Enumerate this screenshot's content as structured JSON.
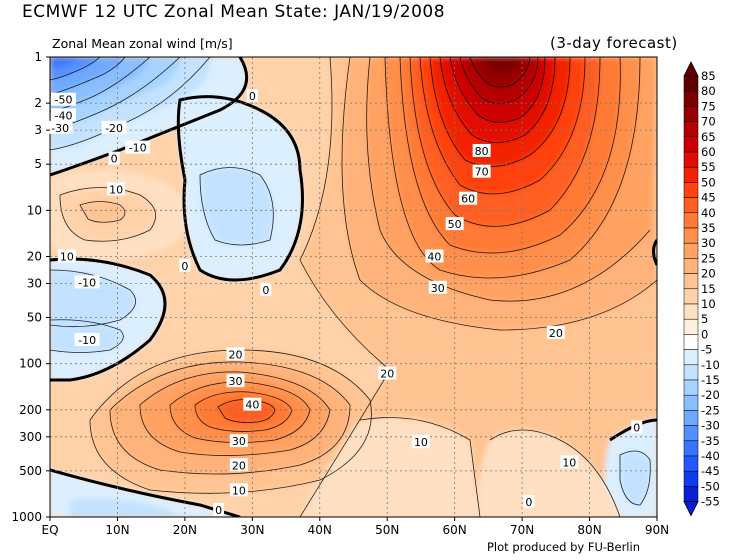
{
  "title": "ECMWF 12 UTC Zonal Mean State: JAN/19/2008",
  "subtitle_left": "Zonal Mean zonal wind [m/s]",
  "subtitle_right": "(3-day forecast)",
  "credit": "Plot produced by FU-Berlin",
  "chart_data": {
    "type": "heatmap",
    "x_ticks": [
      "EQ",
      "10N",
      "20N",
      "30N",
      "40N",
      "50N",
      "60N",
      "70N",
      "80N",
      "90N"
    ],
    "x_values": [
      0,
      10,
      20,
      30,
      40,
      50,
      60,
      70,
      80,
      90
    ],
    "y_ticks": [
      "1",
      "2",
      "3",
      "5",
      "10",
      "20",
      "30",
      "50",
      "100",
      "200",
      "300",
      "500",
      "1000"
    ],
    "y_values": [
      1,
      2,
      3,
      5,
      10,
      20,
      30,
      50,
      100,
      200,
      300,
      500,
      1000
    ],
    "y_scale": "log",
    "y_inverted": true,
    "xlim": [
      0,
      90
    ],
    "ylim": [
      1000,
      1
    ],
    "grid": true,
    "colorbar_labels": [
      "85",
      "80",
      "75",
      "70",
      "65",
      "60",
      "55",
      "50",
      "45",
      "40",
      "35",
      "30",
      "25",
      "20",
      "15",
      "10",
      "5",
      "0",
      "-5",
      "-10",
      "-15",
      "-20",
      "-25",
      "-30",
      "-35",
      "-40",
      "-45",
      "-50",
      "-55"
    ],
    "colorbar_colors": [
      "#5e0000",
      "#7a0000",
      "#960000",
      "#b40000",
      "#cc0000",
      "#e10e00",
      "#f22200",
      "#ff4210",
      "#ff5e22",
      "#ff7a36",
      "#ff8f4c",
      "#ffa262",
      "#ffb27a",
      "#ffc492",
      "#ffd2aa",
      "#ffe0c2",
      "#fff0de",
      "#ffffff",
      "#dcefff",
      "#c2e2ff",
      "#a6d3ff",
      "#8abfff",
      "#6ea9ff",
      "#528fff",
      "#3875ff",
      "#2258ff",
      "#103cf0",
      "#0620d8"
    ],
    "contour_labels": [
      {
        "text": "-50",
        "lat": 2,
        "p": 1.9
      },
      {
        "text": "-40",
        "lat": 2,
        "p": 2.4
      },
      {
        "text": "-30",
        "lat": 1.5,
        "p": 2.9
      },
      {
        "text": "-20",
        "lat": 9.5,
        "p": 2.9
      },
      {
        "text": "-10",
        "lat": 13,
        "p": 3.9
      },
      {
        "text": "0",
        "lat": 9.5,
        "p": 4.6
      },
      {
        "text": "10",
        "lat": 9.8,
        "p": 7.3
      },
      {
        "text": "10",
        "lat": 2.5,
        "p": 20
      },
      {
        "text": "0",
        "lat": 20,
        "p": 23
      },
      {
        "text": "-10",
        "lat": 5.5,
        "p": 29.5
      },
      {
        "text": "-10",
        "lat": 5.5,
        "p": 70
      },
      {
        "text": "0",
        "lat": 30,
        "p": 1.8
      },
      {
        "text": "0",
        "lat": 32,
        "p": 33
      },
      {
        "text": "80",
        "lat": 64,
        "p": 4.1
      },
      {
        "text": "70",
        "lat": 64,
        "p": 5.6
      },
      {
        "text": "60",
        "lat": 62,
        "p": 8.4
      },
      {
        "text": "50",
        "lat": 60,
        "p": 12.3
      },
      {
        "text": "40",
        "lat": 57,
        "p": 20
      },
      {
        "text": "30",
        "lat": 57.5,
        "p": 32
      },
      {
        "text": "20",
        "lat": 75,
        "p": 63
      },
      {
        "text": "20",
        "lat": 50,
        "p": 116
      },
      {
        "text": "20",
        "lat": 27.5,
        "p": 87
      },
      {
        "text": "30",
        "lat": 27.5,
        "p": 130
      },
      {
        "text": "40",
        "lat": 30,
        "p": 185
      },
      {
        "text": "30",
        "lat": 28,
        "p": 320
      },
      {
        "text": "20",
        "lat": 28,
        "p": 460
      },
      {
        "text": "10",
        "lat": 28,
        "p": 670
      },
      {
        "text": "0",
        "lat": 25,
        "p": 900
      },
      {
        "text": "10",
        "lat": 55,
        "p": 325
      },
      {
        "text": "10",
        "lat": 77,
        "p": 440
      },
      {
        "text": "0",
        "lat": 87,
        "p": 260
      },
      {
        "text": "0",
        "lat": 71,
        "p": 800
      }
    ]
  }
}
